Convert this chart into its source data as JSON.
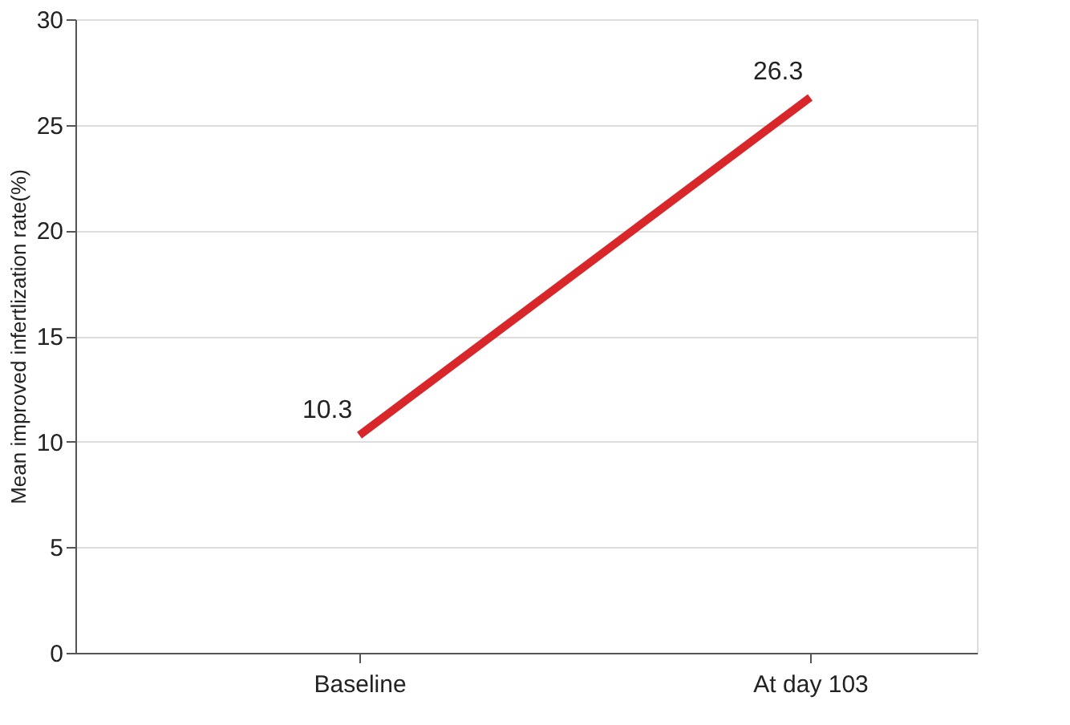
{
  "chart_data": {
    "type": "line",
    "ylabel": "Mean improved infertlization rate(%)",
    "categories": [
      "Baseline",
      "At day 103"
    ],
    "series": [
      {
        "color": "#d9262a",
        "values": [
          10.3,
          26.3
        ]
      }
    ],
    "ylim": [
      0,
      30
    ],
    "yticks": [
      0,
      5,
      10,
      15,
      20,
      25,
      30
    ],
    "grid": "y",
    "data_labels": true,
    "marker": "none",
    "line_style": "solid"
  }
}
